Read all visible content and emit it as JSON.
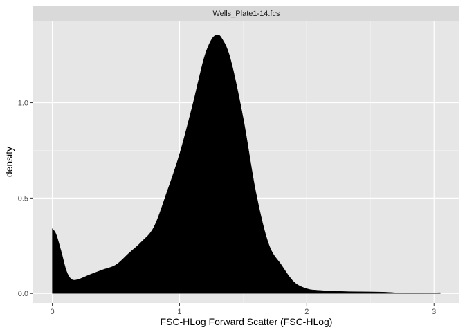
{
  "chart_data": {
    "type": "area",
    "title": "",
    "facet_label": "Wells_Plate1-14.fcs",
    "xlabel": "FSC-HLog Forward Scatter (FSC-HLog)",
    "ylabel": "density",
    "xlim": [
      -0.15,
      3.2
    ],
    "ylim": [
      -0.05,
      1.43
    ],
    "x_ticks": [
      0,
      1,
      2,
      3
    ],
    "x_tick_labels": [
      "0",
      "1",
      "2",
      "3"
    ],
    "y_ticks": [
      0.0,
      0.5,
      1.0
    ],
    "y_tick_labels": [
      "0.0",
      "0.5",
      "1.0"
    ],
    "grid": true,
    "legend": "none",
    "series": [
      {
        "name": "density",
        "fill": "#000000",
        "x": [
          0.0,
          0.03,
          0.07,
          0.11,
          0.15,
          0.2,
          0.3,
          0.4,
          0.5,
          0.6,
          0.7,
          0.8,
          0.9,
          1.0,
          1.1,
          1.15,
          1.2,
          1.25,
          1.29,
          1.33,
          1.4,
          1.5,
          1.6,
          1.7,
          1.8,
          1.9,
          2.0,
          2.1,
          2.3,
          2.6,
          2.8,
          3.05
        ],
        "y": [
          0.34,
          0.31,
          0.22,
          0.12,
          0.075,
          0.073,
          0.1,
          0.125,
          0.15,
          0.21,
          0.27,
          0.35,
          0.53,
          0.73,
          0.98,
          1.12,
          1.25,
          1.33,
          1.355,
          1.34,
          1.23,
          0.92,
          0.53,
          0.26,
          0.15,
          0.06,
          0.025,
          0.016,
          0.01,
          0.007,
          0.0,
          0.004
        ]
      }
    ]
  },
  "colors": {
    "panel_background": "#e6e6e6",
    "strip_background": "#d9d9d9",
    "grid_major": "#ffffff",
    "grid_minor": "#f2f2f2",
    "fill": "#000000"
  }
}
